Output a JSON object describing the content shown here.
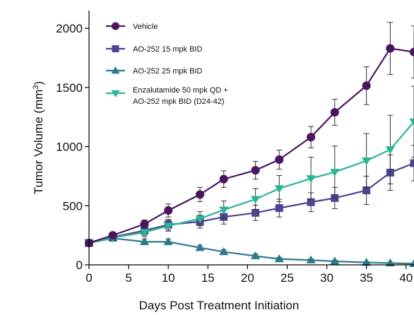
{
  "chart_data": {
    "type": "line",
    "title": "",
    "xlabel": "Days Post Treatment Initiation",
    "ylabel": "Tumor Volume (mm",
    "ylabel_sup": "3",
    "ylabel_close": ")",
    "xlim": [
      0,
      41
    ],
    "ylim": [
      0,
      2150
    ],
    "x_ticks": [
      0,
      5,
      10,
      15,
      20,
      25,
      30,
      35,
      40
    ],
    "x_tick_labels": [
      "0",
      "5",
      "10",
      "15",
      "20",
      "25",
      "30",
      "35",
      "40"
    ],
    "y_ticks": [
      0,
      500,
      1000,
      1500,
      2000
    ],
    "y_tick_labels": [
      "0",
      "500",
      "1000",
      "1500",
      "2000"
    ],
    "grid": false,
    "legend_position": "top-left",
    "series": [
      {
        "name": "Vehicle",
        "color": "#4b1560",
        "marker": "circle",
        "x": [
          0,
          3,
          7,
          10,
          14,
          17,
          21,
          24,
          28,
          31,
          35,
          38,
          41
        ],
        "y": [
          185,
          250,
          345,
          460,
          595,
          725,
          800,
          890,
          1080,
          1290,
          1515,
          1830,
          1800
        ],
        "err": [
          18,
          25,
          35,
          55,
          60,
          70,
          75,
          80,
          90,
          110,
          160,
          220,
          220
        ]
      },
      {
        "name": "AO-252 15 mpk BID",
        "color": "#4a4690",
        "marker": "square",
        "x": [
          0,
          3,
          7,
          10,
          14,
          17,
          21,
          24,
          28,
          31,
          35,
          38,
          41
        ],
        "y": [
          185,
          235,
          290,
          340,
          365,
          405,
          440,
          480,
          530,
          565,
          630,
          780,
          860
        ],
        "err": [
          18,
          25,
          40,
          45,
          55,
          60,
          65,
          75,
          80,
          90,
          120,
          150,
          150
        ]
      },
      {
        "name": "AO-252 25 mpk BID",
        "color": "#2a7a8c",
        "marker": "triangle-up",
        "x": [
          0,
          3,
          7,
          10,
          14,
          17,
          21,
          24,
          28,
          31,
          35,
          38,
          41
        ],
        "y": [
          185,
          225,
          195,
          195,
          145,
          110,
          75,
          50,
          40,
          30,
          20,
          15,
          10
        ],
        "err": [
          15,
          20,
          25,
          25,
          20,
          18,
          15,
          12,
          10,
          8,
          6,
          5,
          5
        ]
      },
      {
        "name": "Enzalutamide 50 mpk QD + AO-252 mpk BID (D24-42)",
        "name_line1": "Enzalutamide 50 mpk QD +",
        "name_line2": "AO-252 mpk BID (D24-42)",
        "color": "#2bb597",
        "marker": "triangle-down",
        "x": [
          0,
          3,
          7,
          10,
          14,
          17,
          21,
          24,
          28,
          31,
          35,
          38,
          41
        ],
        "y": [
          185,
          230,
          275,
          330,
          390,
          465,
          555,
          645,
          730,
          785,
          880,
          975,
          1210
        ],
        "err": [
          18,
          25,
          35,
          45,
          60,
          75,
          90,
          110,
          180,
          220,
          230,
          290,
          300
        ]
      }
    ]
  }
}
